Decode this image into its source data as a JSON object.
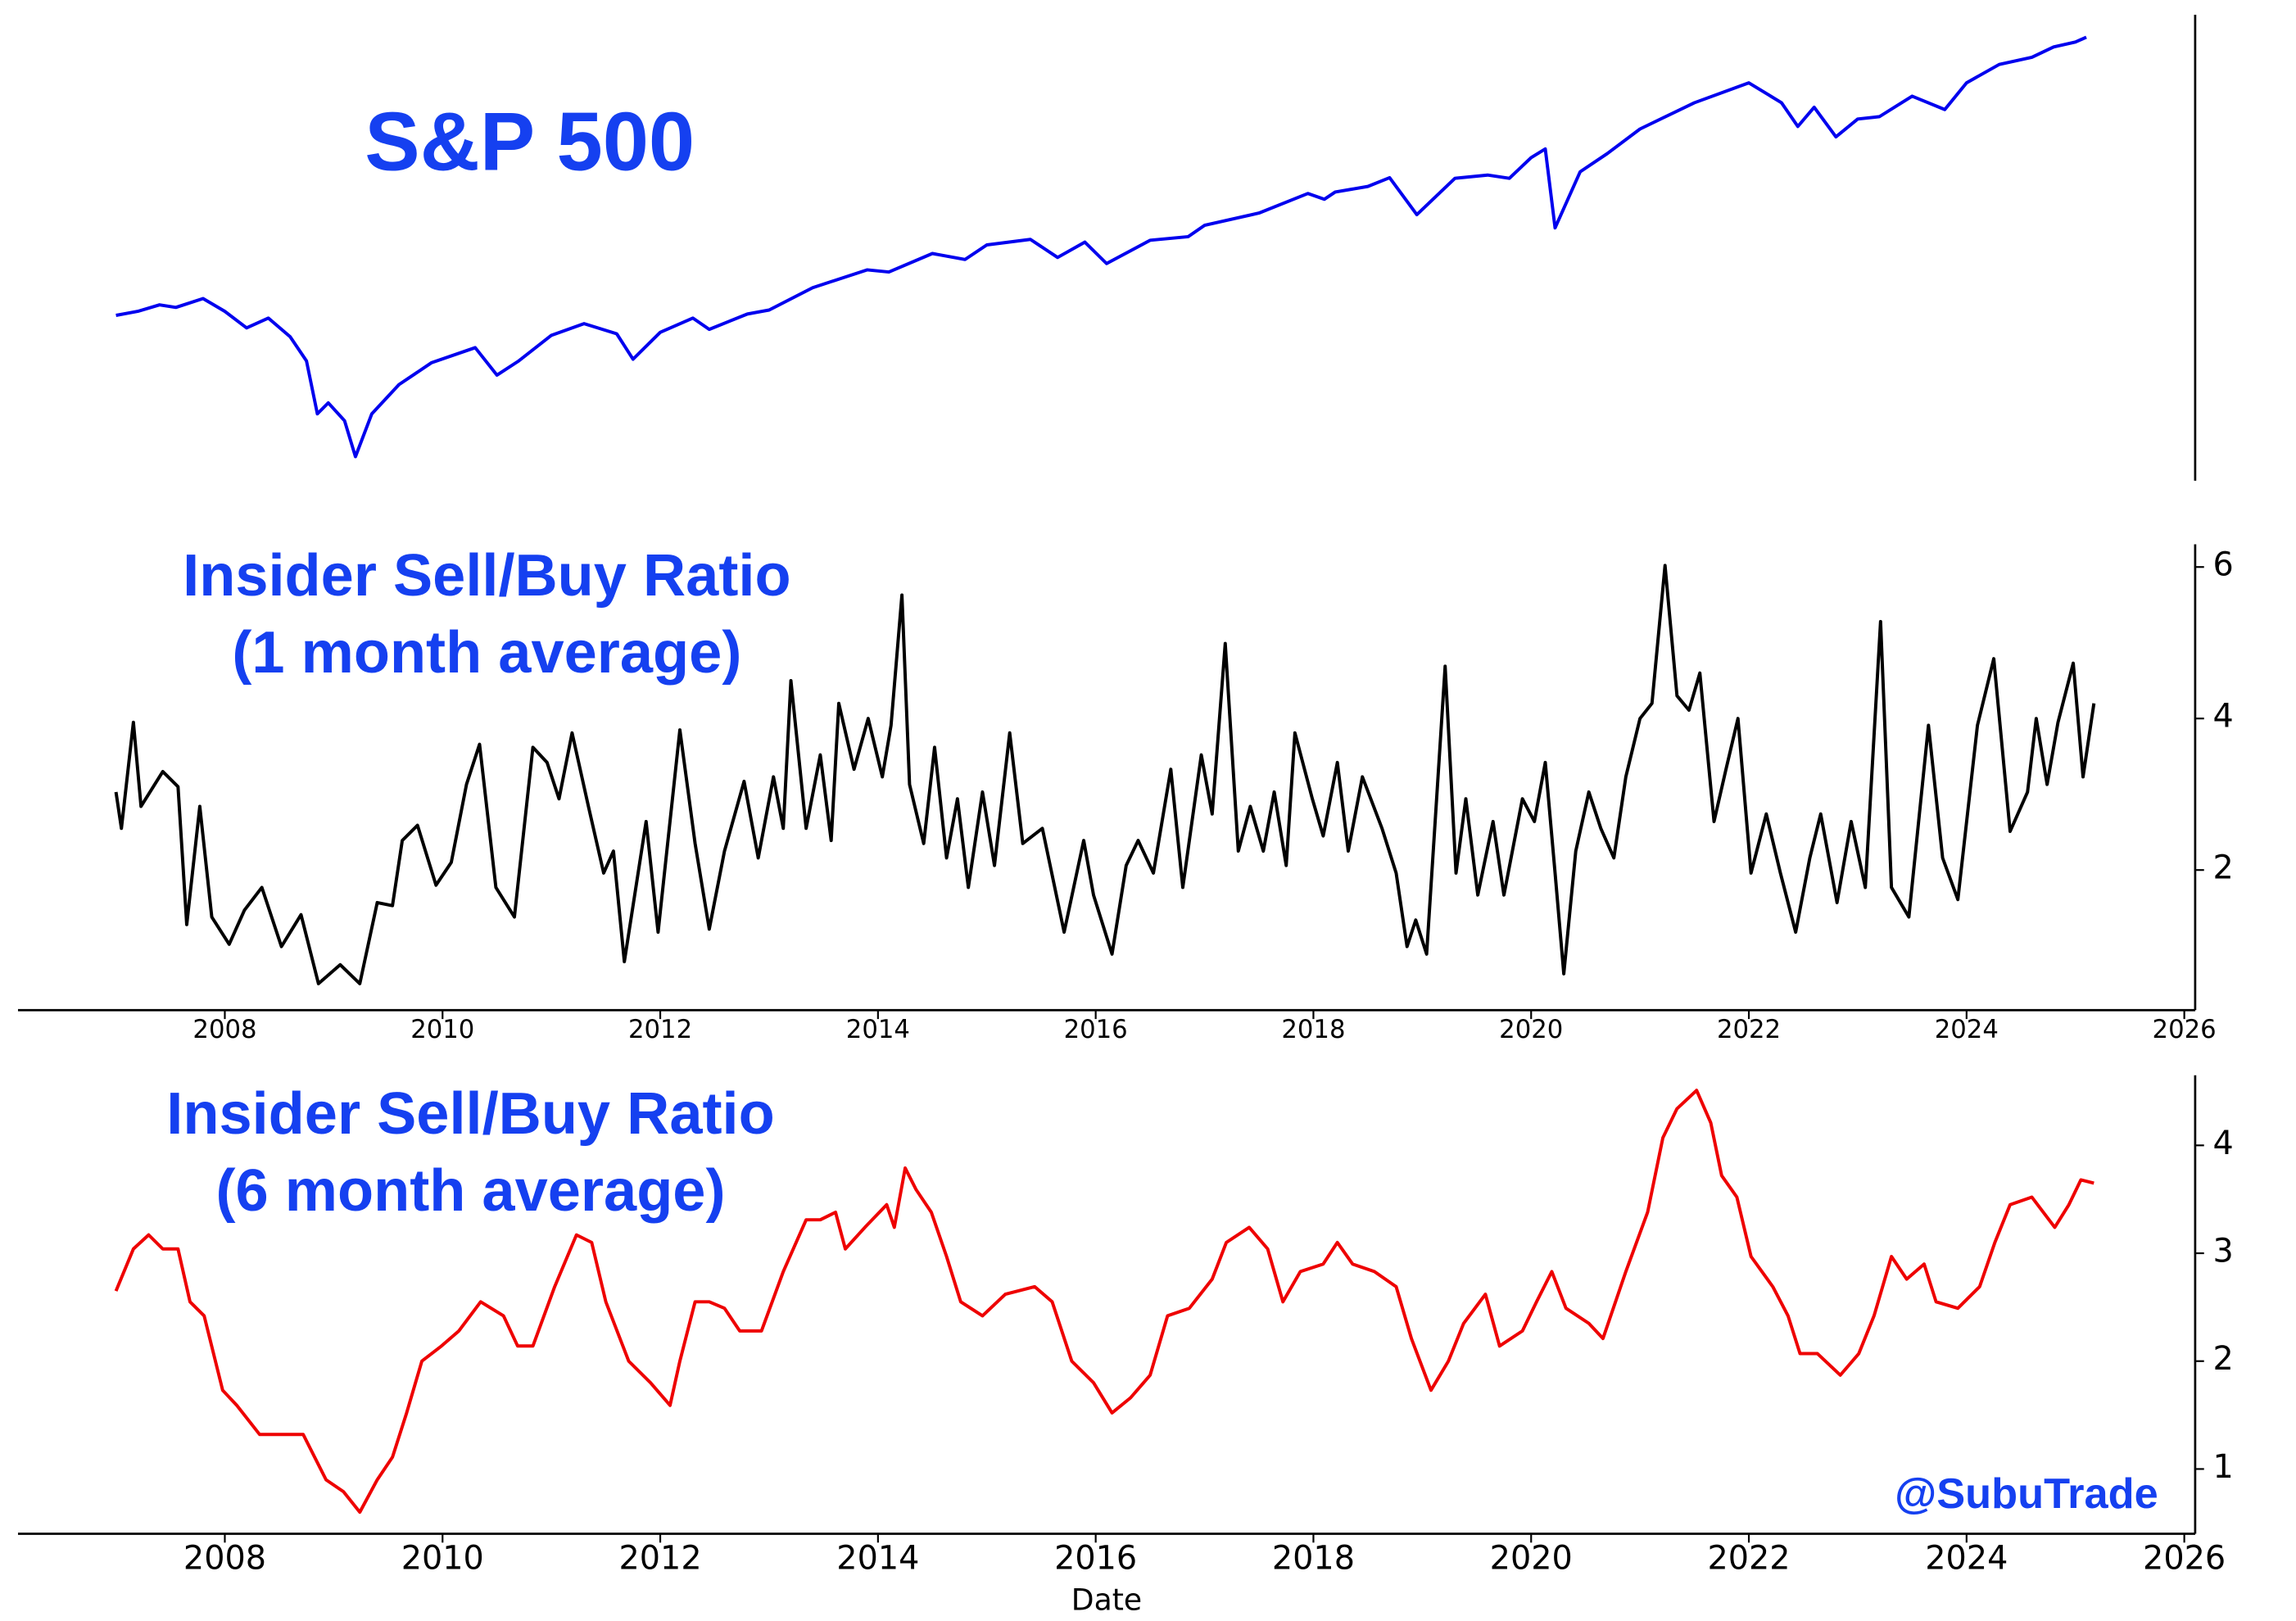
{
  "chart_data": [
    {
      "type": "line",
      "title": [
        "S&P 500"
      ],
      "color": "#0000ee",
      "log_y": true,
      "xlim": [
        2006.1,
        2026.1
      ],
      "ylim": [
        600,
        6800
      ],
      "x": [
        2007.0,
        2007.2,
        2007.4,
        2007.55,
        2007.8,
        2008.0,
        2008.2,
        2008.4,
        2008.6,
        2008.75,
        2008.85,
        2008.95,
        2009.1,
        2009.2,
        2009.35,
        2009.6,
        2009.9,
        2010.3,
        2010.5,
        2010.7,
        2011.0,
        2011.3,
        2011.6,
        2011.75,
        2012.0,
        2012.3,
        2012.45,
        2012.8,
        2013.0,
        2013.4,
        2013.9,
        2014.1,
        2014.5,
        2014.8,
        2015.0,
        2015.4,
        2015.65,
        2015.9,
        2016.1,
        2016.5,
        2016.85,
        2017.0,
        2017.5,
        2017.95,
        2018.1,
        2018.2,
        2018.5,
        2018.7,
        2018.95,
        2019.3,
        2019.6,
        2019.8,
        2020.0,
        2020.13,
        2020.22,
        2020.45,
        2020.7,
        2021.0,
        2021.5,
        2022.0,
        2022.3,
        2022.45,
        2022.6,
        2022.8,
        2023.0,
        2023.2,
        2023.5,
        2023.8,
        2024.0,
        2024.3,
        2024.6,
        2024.8,
        2025.0,
        2025.1
      ],
      "values": [
        1420,
        1450,
        1500,
        1480,
        1550,
        1450,
        1330,
        1400,
        1270,
        1120,
        850,
        900,
        820,
        680,
        850,
        990,
        1110,
        1200,
        1040,
        1120,
        1280,
        1360,
        1290,
        1130,
        1300,
        1400,
        1320,
        1430,
        1460,
        1640,
        1800,
        1780,
        1960,
        1900,
        2050,
        2110,
        1920,
        2080,
        1860,
        2100,
        2140,
        2270,
        2420,
        2680,
        2600,
        2700,
        2780,
        2910,
        2400,
        2900,
        2950,
        2900,
        3230,
        3380,
        2240,
        3000,
        3300,
        3750,
        4300,
        4770,
        4300,
        3800,
        4200,
        3600,
        3950,
        4000,
        4450,
        4150,
        4770,
        5250,
        5450,
        5750,
        5900,
        6050
      ]
    },
    {
      "type": "line",
      "title": [
        "Insider Sell/Buy Ratio",
        "(1 month average)"
      ],
      "color": "#000000",
      "xlim": [
        2006.1,
        2026.1
      ],
      "ylim": [
        0.15,
        6.3
      ],
      "xticks": [
        2008,
        2010,
        2012,
        2014,
        2016,
        2018,
        2020,
        2022,
        2024,
        2026
      ],
      "yticks": [
        2,
        4,
        6
      ],
      "x": [
        2007.0,
        2007.05,
        2007.16,
        2007.23,
        2007.43,
        2007.57,
        2007.65,
        2007.77,
        2007.88,
        2008.04,
        2008.18,
        2008.34,
        2008.52,
        2008.7,
        2008.86,
        2009.06,
        2009.24,
        2009.4,
        2009.54,
        2009.63,
        2009.77,
        2009.94,
        2010.08,
        2010.22,
        2010.34,
        2010.49,
        2010.66,
        2010.83,
        2010.96,
        2011.07,
        2011.19,
        2011.34,
        2011.48,
        2011.57,
        2011.67,
        2011.87,
        2011.98,
        2012.18,
        2012.32,
        2012.45,
        2012.59,
        2012.77,
        2012.9,
        2013.04,
        2013.13,
        2013.2,
        2013.34,
        2013.47,
        2013.57,
        2013.64,
        2013.78,
        2013.91,
        2014.04,
        2014.12,
        2014.22,
        2014.29,
        2014.42,
        2014.52,
        2014.63,
        2014.73,
        2014.83,
        2014.96,
        2015.07,
        2015.21,
        2015.33,
        2015.51,
        2015.71,
        2015.89,
        2015.98,
        2016.15,
        2016.28,
        2016.39,
        2016.53,
        2016.69,
        2016.8,
        2016.97,
        2017.07,
        2017.19,
        2017.31,
        2017.42,
        2017.54,
        2017.64,
        2017.75,
        2017.83,
        2017.99,
        2018.09,
        2018.22,
        2018.32,
        2018.45,
        2018.63,
        2018.76,
        2018.86,
        2018.94,
        2019.04,
        2019.21,
        2019.31,
        2019.4,
        2019.51,
        2019.65,
        2019.75,
        2019.92,
        2020.03,
        2020.13,
        2020.22,
        2020.3,
        2020.41,
        2020.53,
        2020.64,
        2020.76,
        2020.87,
        2021.0,
        2021.11,
        2021.23,
        2021.34,
        2021.45,
        2021.55,
        2021.68,
        2021.79,
        2021.9,
        2022.02,
        2022.16,
        2022.29,
        2022.43,
        2022.56,
        2022.66,
        2022.81,
        2022.94,
        2023.07,
        2023.21,
        2023.31,
        2023.47,
        2023.65,
        2023.78,
        2023.92,
        2024.1,
        2024.25,
        2024.4,
        2024.56,
        2024.64,
        2024.74,
        2024.84,
        2024.98,
        2025.07,
        2025.17
      ],
      "values": [
        3.03,
        2.55,
        3.95,
        2.84,
        3.3,
        3.1,
        1.28,
        2.84,
        1.38,
        1.02,
        1.47,
        1.77,
        0.99,
        1.41,
        0.5,
        0.75,
        0.5,
        1.57,
        1.53,
        2.39,
        2.59,
        1.8,
        2.1,
        3.13,
        3.66,
        1.77,
        1.38,
        3.62,
        3.42,
        2.94,
        3.81,
        2.84,
        1.96,
        2.25,
        0.79,
        2.64,
        1.18,
        3.85,
        2.35,
        1.22,
        2.25,
        3.17,
        2.16,
        3.23,
        2.55,
        4.5,
        2.55,
        3.52,
        2.39,
        4.2,
        3.33,
        4.0,
        3.23,
        3.91,
        5.63,
        3.13,
        2.35,
        3.62,
        2.16,
        2.94,
        1.77,
        3.03,
        2.06,
        3.81,
        2.35,
        2.55,
        1.18,
        2.39,
        1.67,
        0.89,
        2.06,
        2.39,
        1.96,
        3.33,
        1.77,
        3.52,
        2.74,
        4.99,
        2.25,
        2.84,
        2.25,
        3.03,
        2.06,
        3.81,
        2.94,
        2.45,
        3.42,
        2.25,
        3.23,
        2.55,
        1.96,
        0.99,
        1.34,
        0.89,
        4.69,
        1.96,
        2.94,
        1.67,
        2.64,
        1.67,
        2.94,
        2.64,
        3.42,
        1.96,
        0.63,
        2.25,
        3.03,
        2.55,
        2.16,
        3.23,
        4.0,
        4.2,
        6.02,
        4.3,
        4.11,
        4.6,
        2.64,
        3.33,
        4.0,
        1.96,
        2.74,
        1.96,
        1.18,
        2.16,
        2.74,
        1.57,
        2.64,
        1.77,
        5.28,
        1.77,
        1.38,
        3.91,
        2.16,
        1.61,
        3.91,
        4.79,
        2.51,
        3.03,
        4.0,
        3.13,
        3.95,
        4.73,
        3.23,
        4.2
      ]
    },
    {
      "type": "line",
      "title": [
        "Insider Sell/Buy Ratio",
        "(6 month average)"
      ],
      "color": "#ee0000",
      "xlabel": "Date",
      "annotation": "@SubuTrade",
      "xlim": [
        2006.1,
        2026.1
      ],
      "ylim": [
        0.4,
        4.65
      ],
      "xticks": [
        2008,
        2010,
        2012,
        2014,
        2016,
        2018,
        2020,
        2022,
        2024,
        2026
      ],
      "yticks": [
        1,
        2,
        3,
        4
      ],
      "x": [
        2007.0,
        2007.16,
        2007.3,
        2007.43,
        2007.57,
        2007.68,
        2007.81,
        2007.98,
        2008.11,
        2008.32,
        2008.52,
        2008.72,
        2008.93,
        2009.09,
        2009.24,
        2009.4,
        2009.54,
        2009.67,
        2009.81,
        2009.99,
        2010.15,
        2010.35,
        2010.56,
        2010.69,
        2010.83,
        2011.03,
        2011.23,
        2011.37,
        2011.5,
        2011.71,
        2011.91,
        2012.09,
        2012.18,
        2012.32,
        2012.45,
        2012.59,
        2012.73,
        2012.93,
        2013.13,
        2013.34,
        2013.47,
        2013.61,
        2013.7,
        2013.88,
        2014.08,
        2014.15,
        2014.25,
        2014.35,
        2014.49,
        2014.63,
        2014.76,
        2014.96,
        2015.17,
        2015.44,
        2015.6,
        2015.78,
        2015.98,
        2016.15,
        2016.32,
        2016.5,
        2016.66,
        2016.86,
        2017.07,
        2017.2,
        2017.41,
        2017.58,
        2017.72,
        2017.88,
        2018.09,
        2018.22,
        2018.36,
        2018.56,
        2018.76,
        2018.9,
        2019.08,
        2019.24,
        2019.38,
        2019.58,
        2019.71,
        2019.92,
        2020.05,
        2020.19,
        2020.32,
        2020.53,
        2020.66,
        2020.87,
        2021.07,
        2021.21,
        2021.34,
        2021.52,
        2021.65,
        2021.75,
        2021.89,
        2022.02,
        2022.22,
        2022.36,
        2022.47,
        2022.63,
        2022.84,
        2023.01,
        2023.15,
        2023.31,
        2023.45,
        2023.61,
        2023.72,
        2023.92,
        2024.12,
        2024.26,
        2024.4,
        2024.6,
        2024.81,
        2024.94,
        2025.05,
        2025.17
      ],
      "values": [
        2.65,
        3.04,
        3.17,
        3.04,
        3.04,
        2.55,
        2.42,
        1.73,
        1.59,
        1.32,
        1.32,
        1.32,
        0.9,
        0.79,
        0.6,
        0.9,
        1.11,
        1.52,
        2.0,
        2.14,
        2.28,
        2.55,
        2.42,
        2.14,
        2.14,
        2.69,
        3.17,
        3.1,
        2.55,
        2.0,
        1.8,
        1.59,
        2.0,
        2.55,
        2.55,
        2.49,
        2.28,
        2.28,
        2.83,
        3.31,
        3.31,
        3.38,
        3.04,
        3.24,
        3.45,
        3.24,
        3.79,
        3.59,
        3.38,
        2.97,
        2.55,
        2.42,
        2.62,
        2.69,
        2.55,
        2.0,
        1.8,
        1.52,
        1.66,
        1.87,
        2.42,
        2.49,
        2.76,
        3.1,
        3.24,
        3.04,
        2.55,
        2.83,
        2.9,
        3.1,
        2.9,
        2.83,
        2.69,
        2.21,
        1.73,
        2.0,
        2.35,
        2.62,
        2.14,
        2.28,
        2.55,
        2.83,
        2.49,
        2.35,
        2.21,
        2.83,
        3.38,
        4.07,
        4.34,
        4.51,
        4.21,
        3.72,
        3.52,
        2.97,
        2.69,
        2.42,
        2.07,
        2.07,
        1.87,
        2.07,
        2.42,
        2.97,
        2.76,
        2.9,
        2.55,
        2.49,
        2.69,
        3.1,
        3.45,
        3.52,
        3.24,
        3.45,
        3.68,
        3.65
      ]
    }
  ]
}
